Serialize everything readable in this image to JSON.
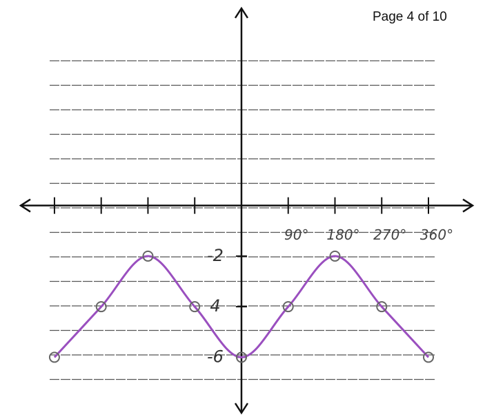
{
  "page_label": "Page 4 of 10",
  "chart_data": {
    "type": "line",
    "x": [
      -360,
      -270,
      -180,
      -90,
      0,
      90,
      180,
      270,
      360
    ],
    "values": [
      -6,
      -4,
      -2,
      -4,
      -6,
      -4,
      -2,
      -4,
      -6
    ],
    "color": "#9a4fbf",
    "marker_color": "#666666",
    "xlim": [
      -425,
      445
    ],
    "ylim": [
      -8.2,
      7.8
    ],
    "xticks": [
      {
        "value": -360,
        "label": null
      },
      {
        "value": -270,
        "label": null
      },
      {
        "value": -180,
        "label": null
      },
      {
        "value": -90,
        "label": null
      },
      {
        "value": 90,
        "label": "90°"
      },
      {
        "value": 180,
        "label": "180°"
      },
      {
        "value": 270,
        "label": "270°"
      },
      {
        "value": 360,
        "label": "360°"
      }
    ],
    "yticks": [
      -2,
      {
        "value": -4,
        "label": "4"
      },
      -6
    ]
  }
}
